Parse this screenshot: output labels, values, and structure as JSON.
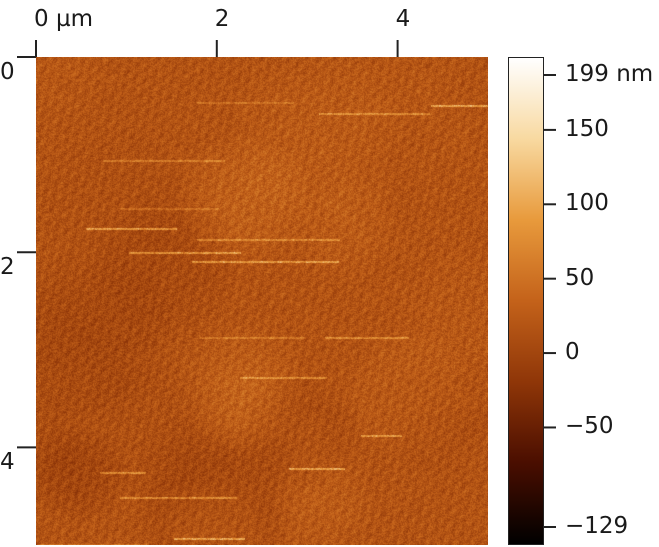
{
  "x_axis": {
    "ticks": [
      {
        "value": 0,
        "label": "0 µm"
      },
      {
        "value": 2,
        "label": "2"
      },
      {
        "value": 4,
        "label": "4"
      }
    ]
  },
  "y_axis": {
    "ticks": [
      {
        "value": 0,
        "label": "0"
      },
      {
        "value": 2,
        "label": "2"
      },
      {
        "value": 4,
        "label": "4"
      }
    ]
  },
  "colorbar": {
    "ticks": [
      {
        "value": 199,
        "label": "199 nm"
      },
      {
        "value": 150,
        "label": "150"
      },
      {
        "value": 100,
        "label": "100"
      },
      {
        "value": 50,
        "label": "50"
      },
      {
        "value": 0,
        "label": "0"
      },
      {
        "value": -50,
        "label": "−50"
      },
      {
        "value": -129,
        "label": "−129"
      }
    ],
    "min": -129,
    "max": 199,
    "colors": [
      "#000000",
      "#4a0e00",
      "#8f3608",
      "#c4621a",
      "#e89a3c",
      "#f8d9a0",
      "#ffffff"
    ]
  },
  "image": {
    "x_range_um": [
      0,
      5
    ],
    "y_range_um": [
      0,
      5
    ],
    "base_color": "#b5531a"
  }
}
